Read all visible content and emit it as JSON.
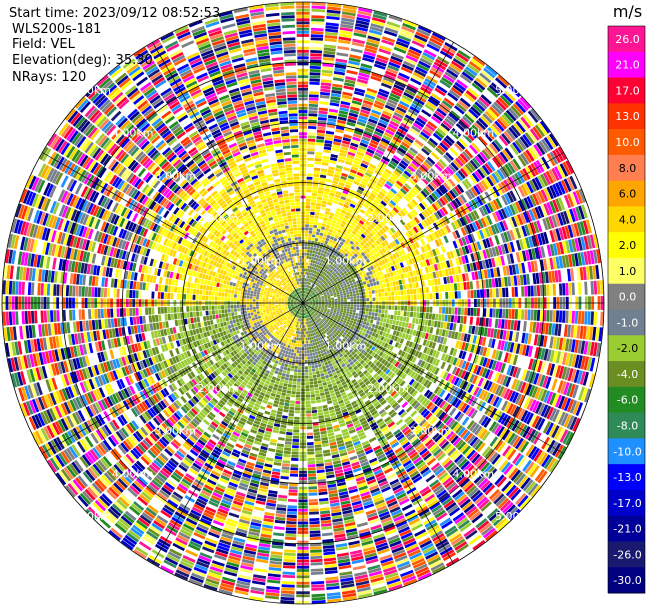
{
  "header": {
    "start_time": "Start time: 2023/09/12 08:52:53",
    "instrument": "WLS200s-181",
    "field": "Field: VEL",
    "elevation": "Elevation(deg): 35.30",
    "nrays": "NRays: 120"
  },
  "chart_data": {
    "type": "heatmap",
    "projection": "polar",
    "field": "VEL",
    "n_rays": 120,
    "elevation_deg": 35.3,
    "max_range_km": 5.0,
    "range_ring_labels": [
      "1.00km",
      "2.00km",
      "3.00km",
      "4.00km",
      "5.00km"
    ],
    "colorbar": {
      "units": "m/s",
      "tick_labels": [
        "26.0",
        "21.0",
        "17.0",
        "13.0",
        "10.0",
        "8.0",
        "6.0",
        "4.0",
        "2.0",
        "1.0",
        "0.0",
        "-1.0",
        "-2.0",
        "-4.0",
        "-6.0",
        "-8.0",
        "-10.0",
        "-13.0",
        "-17.0",
        "-21.0",
        "-26.0",
        "-30.0"
      ],
      "colors": [
        "#ff1493",
        "#ff00ff",
        "#ff0033",
        "#ff3300",
        "#ff5a00",
        "#ff7f50",
        "#ffa500",
        "#ffd700",
        "#ffff00",
        "#ffff66",
        "#808080",
        "#708090",
        "#9acd32",
        "#6b8e23",
        "#228b22",
        "#2e8b57",
        "#1e90ff",
        "#0000ff",
        "#0000cd",
        "#000099",
        "#191970",
        "#000080"
      ]
    },
    "observed_pattern": {
      "center_core_range_km": 0.25,
      "core_colors": [
        "#6b8e23",
        "#228b22"
      ],
      "inner_zone_range_km": [
        0.25,
        1.3
      ],
      "inner_zone_colors": [
        "#ffd700",
        "#808080",
        "#708090",
        "#6b8e23",
        "#9acd32"
      ],
      "middle_zone_range_km": [
        1.3,
        2.7
      ],
      "middle_zone_north_colors": [
        "#ffff00",
        "#ffd700"
      ],
      "middle_zone_south_colors": [
        "#9acd32",
        "#6b8e23"
      ],
      "outer_zone_range_km": [
        2.7,
        5.0
      ],
      "outer_zone_note": "noise"
    }
  }
}
